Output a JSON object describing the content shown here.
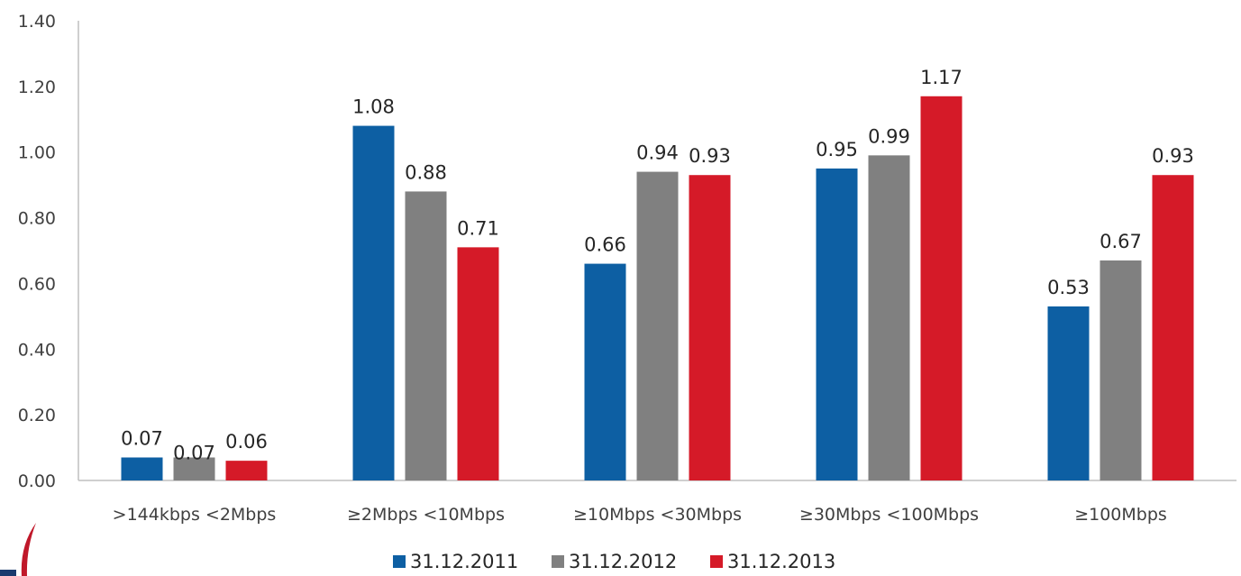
{
  "chart_data": {
    "type": "bar",
    "categories": [
      ">144kbps <2Mbps",
      "≥2Mbps <10Mbps",
      "≥10Mbps <30Mbps",
      "≥30Mbps <100Mbps",
      "≥100Mbps"
    ],
    "series": [
      {
        "name": "31.12.2011",
        "color": "#0d5fa3",
        "values": [
          0.07,
          1.08,
          0.66,
          0.95,
          0.53
        ]
      },
      {
        "name": "31.12.2012",
        "color": "#808080",
        "values": [
          0.07,
          0.88,
          0.94,
          0.99,
          0.67
        ]
      },
      {
        "name": "31.12.2013",
        "color": "#d51a28",
        "values": [
          0.06,
          0.71,
          0.93,
          1.17,
          0.93
        ]
      }
    ],
    "ylim": [
      0,
      1.4
    ],
    "yticks": [
      "0.00",
      "0.20",
      "0.40",
      "0.60",
      "0.80",
      "1.00",
      "1.20",
      "1.40"
    ],
    "grid": false,
    "legend": "bottom-center",
    "title": "",
    "xlabel": "",
    "ylabel": ""
  }
}
